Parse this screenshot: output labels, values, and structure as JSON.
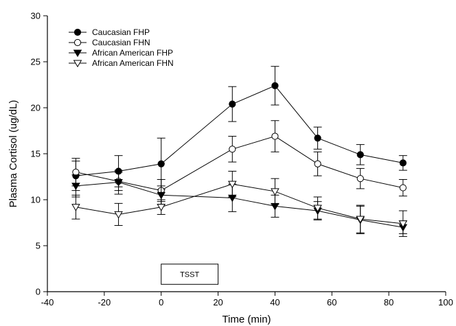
{
  "chart_data": {
    "type": "line",
    "title": "",
    "xlabel": "Time (min)",
    "ylabel": "Plasma Cortisol (ug/dL)",
    "xlim": [
      -40,
      100
    ],
    "ylim": [
      0,
      30
    ],
    "xticks": [
      -40,
      -20,
      0,
      20,
      40,
      60,
      80,
      100
    ],
    "yticks": [
      0,
      5,
      10,
      15,
      20,
      25,
      30
    ],
    "grid": false,
    "legend_position": "top-left",
    "x": [
      -30,
      -15,
      0,
      25,
      40,
      55,
      70,
      85
    ],
    "series": [
      {
        "name": "Caucasian FHP",
        "marker": "filled-circle",
        "values": [
          12.6,
          13.1,
          13.9,
          20.4,
          22.4,
          16.7,
          14.9,
          14.0
        ],
        "errors": [
          1.6,
          1.7,
          2.8,
          1.9,
          2.1,
          1.2,
          1.1,
          0.8
        ]
      },
      {
        "name": "Caucasian FHN",
        "marker": "open-circle",
        "values": [
          13.0,
          12.0,
          11.0,
          15.5,
          16.9,
          13.9,
          12.3,
          11.3
        ],
        "errors": [
          1.5,
          1.0,
          1.2,
          1.4,
          1.7,
          1.3,
          1.1,
          0.9
        ]
      },
      {
        "name": "African American FHP",
        "marker": "filled-triangle-down",
        "values": [
          11.5,
          11.9,
          10.5,
          10.2,
          9.3,
          8.8,
          7.8,
          7.0
        ],
        "errors": [
          1.2,
          1.3,
          1.0,
          1.5,
          1.2,
          1.0,
          1.5,
          0.7
        ]
      },
      {
        "name": "African American FHN",
        "marker": "open-triangle-down",
        "values": [
          9.2,
          8.4,
          9.2,
          11.7,
          10.9,
          9.1,
          7.9,
          7.4
        ],
        "errors": [
          1.3,
          1.2,
          0.8,
          1.4,
          1.4,
          1.2,
          1.5,
          1.4
        ]
      }
    ],
    "annotations": [
      {
        "label": "TSST",
        "x_range": [
          0,
          20
        ],
        "y_range": [
          0.8,
          3.0
        ]
      }
    ]
  }
}
